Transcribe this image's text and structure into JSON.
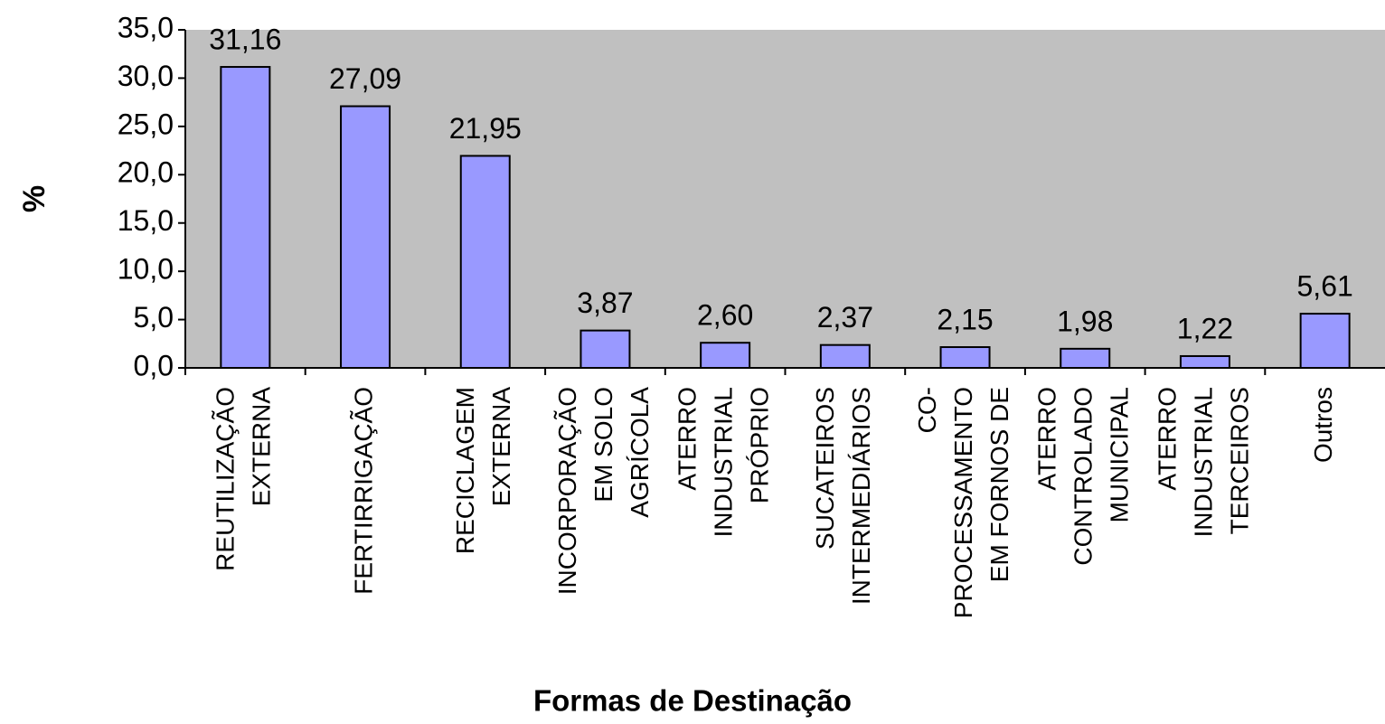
{
  "chart_data": {
    "type": "bar",
    "categories": [
      [
        "REUTILIZAÇÃO",
        "EXTERNA"
      ],
      [
        "FERTIRRIGAÇÃO"
      ],
      [
        "RECICLAGEM",
        "EXTERNA"
      ],
      [
        "INCORPORAÇÃO",
        "EM SOLO",
        "AGRÍCOLA"
      ],
      [
        "ATERRO",
        "INDUSTRIAL",
        "PRÓPRIO"
      ],
      [
        "SUCATEIROS",
        "INTERMEDIÁRIOS"
      ],
      [
        "CO-",
        "PROCESSAMENTO",
        "EM FORNOS DE"
      ],
      [
        "ATERRO",
        "CONTROLADO",
        "MUNICIPAL"
      ],
      [
        "ATERRO",
        "INDUSTRIAL",
        "TERCEIROS"
      ],
      [
        "Outros"
      ]
    ],
    "values": [
      31.16,
      27.09,
      21.95,
      3.87,
      2.6,
      2.37,
      2.15,
      1.98,
      1.22,
      5.61
    ],
    "value_labels": [
      "31,16",
      "27,09",
      "21,95",
      "3,87",
      "2,60",
      "2,37",
      "2,15",
      "1,98",
      "1,22",
      "5,61"
    ],
    "color": "#9999ff",
    "ylabel": "%",
    "xlabel": "Formas de Destinação",
    "ylim": [
      0,
      35
    ],
    "yticks": [
      {
        "value": 0,
        "label": "0,0"
      },
      {
        "value": 5,
        "label": "5,0"
      },
      {
        "value": 10,
        "label": "10,0"
      },
      {
        "value": 15,
        "label": "15,0"
      },
      {
        "value": 20,
        "label": "20,0"
      },
      {
        "value": 25,
        "label": "25,0"
      },
      {
        "value": 30,
        "label": "30,0"
      },
      {
        "value": 35,
        "label": "35,0"
      }
    ],
    "grid": false,
    "plot_background": "#c0c0c0"
  }
}
